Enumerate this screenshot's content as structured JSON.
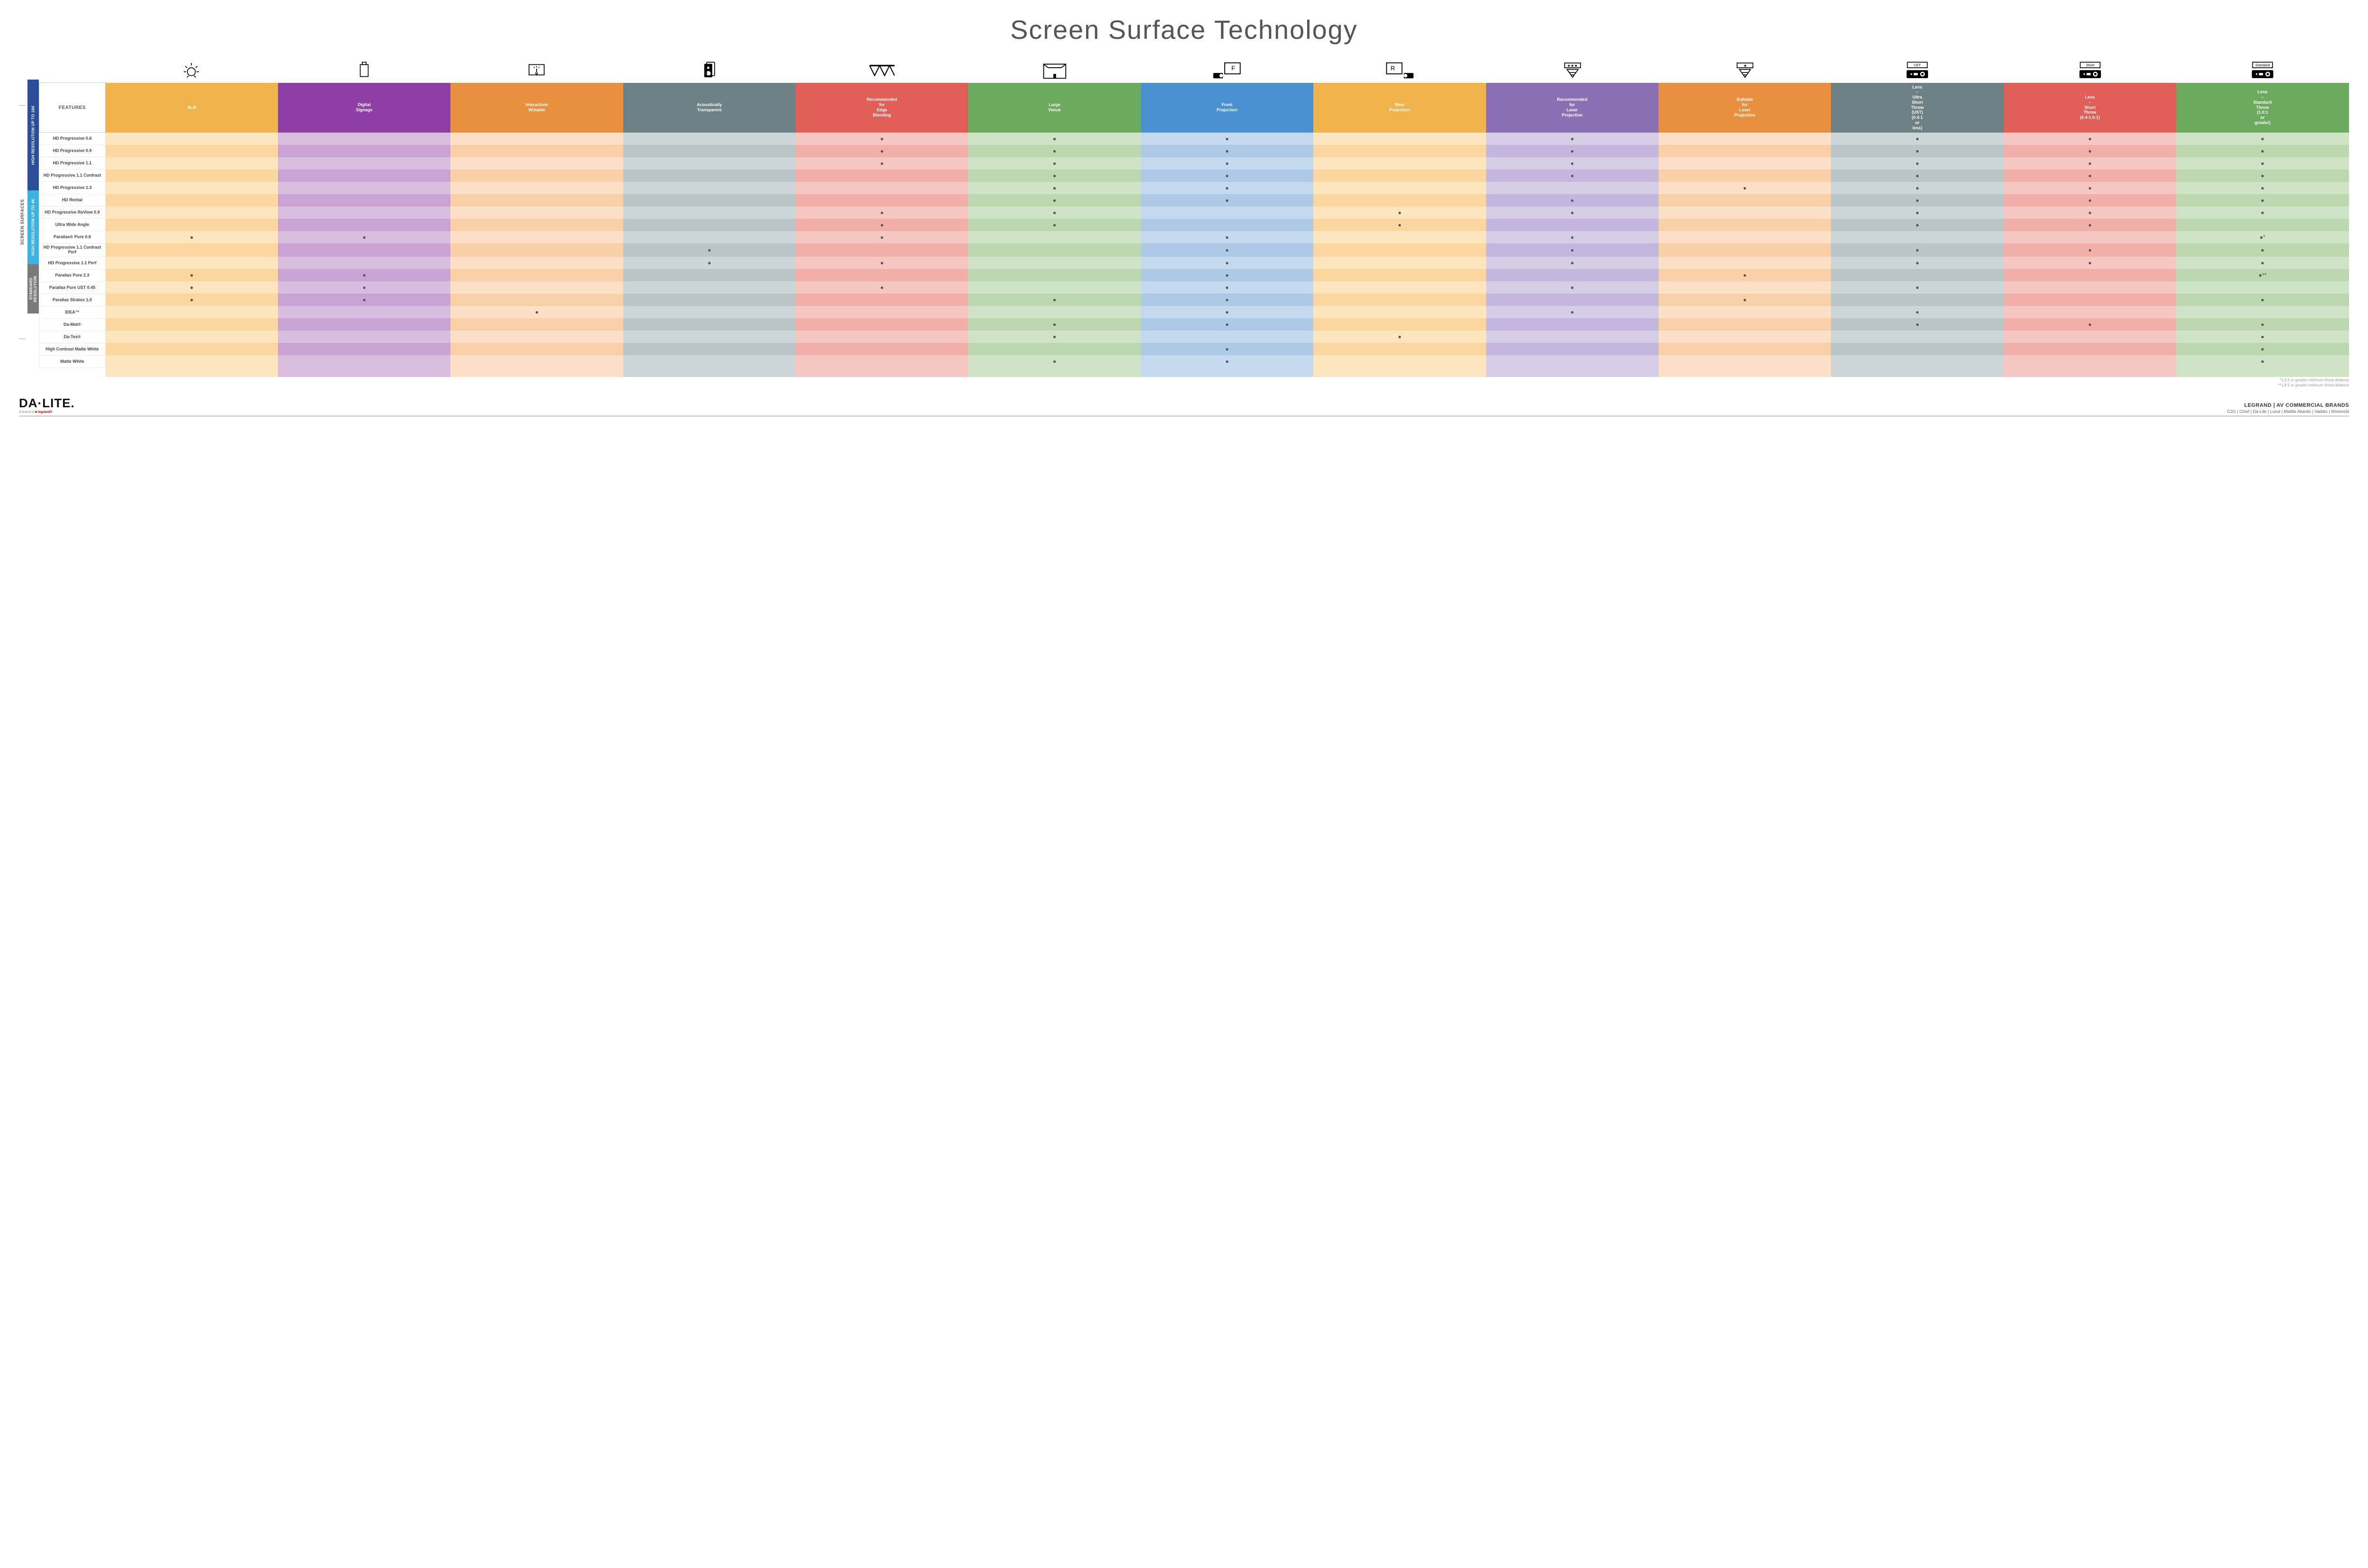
{
  "title": "Screen Surface Technology",
  "sideLabel": "SCREEN SURFACES",
  "groups": [
    {
      "label": "HIGH RESOLUTION UP TO 16K",
      "color": "#2b4e9b",
      "rows": 9
    },
    {
      "label": "HIGH RESOLUTION UP TO 4K",
      "color": "#3db2e0",
      "rows": 6
    },
    {
      "label": "STANDARD RESOLUTION",
      "color": "#7a7a7a",
      "rows": 4
    }
  ],
  "featuresHeader": "FEATURES",
  "columns": [
    {
      "label": "ALR",
      "color": "#f0b24a",
      "tintA": "#fce4bd",
      "tintB": "#fbd79f",
      "icon": "bulb"
    },
    {
      "label": "Digital Signage",
      "color": "#8e3fa3",
      "tintA": "#d9bde0",
      "tintB": "#caa3d5",
      "icon": "signage"
    },
    {
      "label": "Interactive/ Writable",
      "color": "#e89040",
      "tintA": "#fbe0c5",
      "tintB": "#f8cfa7",
      "icon": "touch"
    },
    {
      "label": "Acoustically Transparent",
      "color": "#6d8083",
      "tintA": "#cdd6d6",
      "tintB": "#bac6c6",
      "icon": "speaker"
    },
    {
      "label": "Recommended for Edge Blending",
      "color": "#e15d58",
      "tintA": "#f6c6c3",
      "tintB": "#f2aea9",
      "icon": "blend"
    },
    {
      "label": "Large Venue",
      "color": "#6cab5e",
      "tintA": "#cfe3c6",
      "tintB": "#bdd8b0",
      "icon": "venue"
    },
    {
      "label": "Front Projection",
      "color": "#4a8fcf",
      "tintA": "#c4d9ee",
      "tintB": "#adc9e6",
      "icon": "front"
    },
    {
      "label": "Rear Projection",
      "color": "#f0b24a",
      "tintA": "#fce4bd",
      "tintB": "#fbd79f",
      "icon": "rear"
    },
    {
      "label": "Recommended for Laser Projection",
      "color": "#8b6fb5",
      "tintA": "#d5cce6",
      "tintB": "#c4b6dd",
      "icon": "laser3"
    },
    {
      "label": "Suitable for Laser Projection",
      "color": "#e89040",
      "tintA": "#fbe0c5",
      "tintB": "#f8cfa7",
      "icon": "laser1"
    },
    {
      "label": "Lens – Ultra Short Throw (UST) (0.4:1 or less)",
      "color": "#6d8083",
      "tintA": "#cdd6d6",
      "tintB": "#bac6c6",
      "icon": "ust"
    },
    {
      "label": "Lens – Short Throw (0.4-1.0:1)",
      "color": "#e15d58",
      "tintA": "#f6c6c3",
      "tintB": "#f2aea9",
      "icon": "short"
    },
    {
      "label": "Lens – Standard Throw (1.0:1 or greater)",
      "color": "#6cab5e",
      "tintA": "#cfe3c6",
      "tintB": "#bdd8b0",
      "icon": "standard"
    }
  ],
  "rows": [
    {
      "label": "HD Progressive 0.6",
      "cells": [
        "",
        "",
        "",
        "",
        "●",
        "●",
        "●",
        "",
        "●",
        "",
        "●",
        "●",
        "●"
      ]
    },
    {
      "label": "HD Progressive 0.9",
      "cells": [
        "",
        "",
        "",
        "",
        "●",
        "●",
        "●",
        "",
        "●",
        "",
        "●",
        "●",
        "●"
      ]
    },
    {
      "label": "HD Progressive 1.1",
      "cells": [
        "",
        "",
        "",
        "",
        "●",
        "●",
        "●",
        "",
        "●",
        "",
        "●",
        "●",
        "●"
      ]
    },
    {
      "label": "HD Progressive 1.1 Contrast",
      "cells": [
        "",
        "",
        "",
        "",
        "",
        "●",
        "●",
        "",
        "●",
        "",
        "●",
        "●",
        "●"
      ]
    },
    {
      "label": "HD Progressive 1.3",
      "cells": [
        "",
        "",
        "",
        "",
        "",
        "●",
        "●",
        "",
        "",
        "●",
        "●",
        "●",
        "●"
      ]
    },
    {
      "label": "HD Rental",
      "cells": [
        "",
        "",
        "",
        "",
        "",
        "●",
        "●",
        "",
        "●",
        "",
        "●",
        "●",
        "●"
      ]
    },
    {
      "label": "HD Progressive ReView 0.9",
      "cells": [
        "",
        "",
        "",
        "",
        "●",
        "●",
        "",
        "●",
        "●",
        "",
        "●",
        "●",
        "●"
      ]
    },
    {
      "label": "Ultra Wide Angle",
      "cells": [
        "",
        "",
        "",
        "",
        "●",
        "●",
        "",
        "●",
        "",
        "",
        "●",
        "●",
        ""
      ]
    },
    {
      "label": "Parallax® Pure 0.8",
      "cells": [
        "●",
        "●",
        "",
        "",
        "●",
        "",
        "●",
        "",
        "●",
        "",
        "",
        "",
        "●*"
      ]
    },
    {
      "label": "HD Progressive 1.1 Contrast Perf",
      "cells": [
        "",
        "",
        "",
        "●",
        "",
        "",
        "●",
        "",
        "●",
        "",
        "●",
        "●",
        "●"
      ]
    },
    {
      "label": "HD Progressive 1.1 Perf",
      "cells": [
        "",
        "",
        "",
        "●",
        "●",
        "",
        "●",
        "",
        "●",
        "",
        "●",
        "●",
        "●"
      ]
    },
    {
      "label": "Parallax Pure 2.3",
      "cells": [
        "●",
        "●",
        "",
        "",
        "",
        "",
        "●",
        "",
        "",
        "●",
        "",
        "",
        "●**"
      ]
    },
    {
      "label": "Parallax Pure UST 0.45",
      "cells": [
        "●",
        "●",
        "",
        "",
        "●",
        "",
        "●",
        "",
        "●",
        "",
        "●",
        "",
        ""
      ]
    },
    {
      "label": "Parallax Stratos 1.0",
      "cells": [
        "●",
        "●",
        "",
        "",
        "",
        "●",
        "●",
        "",
        "",
        "●",
        "",
        "",
        "●"
      ]
    },
    {
      "label": "IDEA™",
      "cells": [
        "",
        "",
        "●",
        "",
        "",
        "",
        "●",
        "",
        "●",
        "",
        "●",
        "",
        ""
      ]
    },
    {
      "label": "Da-Mat®",
      "cells": [
        "",
        "",
        "",
        "",
        "",
        "●",
        "●",
        "",
        "",
        "",
        "●",
        "●",
        "●"
      ]
    },
    {
      "label": "Da-Tex®",
      "cells": [
        "",
        "",
        "",
        "",
        "",
        "●",
        "",
        "●",
        "",
        "",
        "",
        "",
        "●"
      ]
    },
    {
      "label": "High Contrast Matte White",
      "cells": [
        "",
        "",
        "",
        "",
        "",
        "",
        "●",
        "",
        "",
        "",
        "",
        "",
        "●"
      ]
    },
    {
      "label": "Matte White",
      "cells": [
        "",
        "",
        "",
        "",
        "",
        "●",
        "●",
        "",
        "",
        "",
        "",
        "",
        "●"
      ]
    }
  ],
  "footnotes": [
    "*1.5:1 or greater minimum throw distance",
    "**1.8:1 or greater minimum throw distance"
  ],
  "bottom": {
    "logo": "DA·LITE.",
    "logoSub": "A brand of ",
    "logoSubRed": "■ legrand®",
    "brandsTop": "LEGRAND | AV COMMERCIAL BRANDS",
    "brandsBot": "C2G  |  Chief  |  Da-Lite  |  Luxul  |  Middle Atlantic  |  Vaddio  |  Wiremold"
  }
}
